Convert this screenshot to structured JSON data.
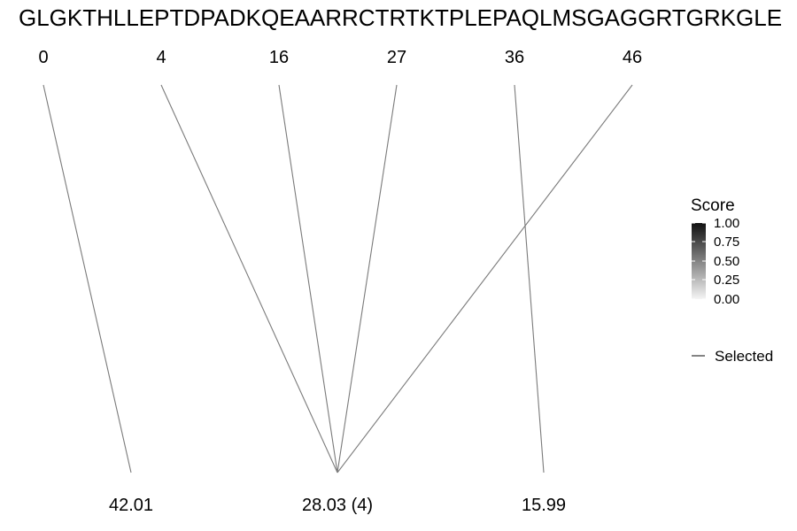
{
  "sequence": "GLGKTHLLEPTDPADKQEAARRCTRTKTPLEPAQLMSGAGGRTGRKGLE",
  "positions": [
    "0",
    "4",
    "16",
    "27",
    "36",
    "46"
  ],
  "fragments": [
    "42.01",
    "28.03 (4)",
    "15.99"
  ],
  "links": [
    {
      "from": "0",
      "to": "42.01"
    },
    {
      "from": "4",
      "to": "28.03 (4)"
    },
    {
      "from": "16",
      "to": "28.03 (4)"
    },
    {
      "from": "27",
      "to": "28.03 (4)"
    },
    {
      "from": "46",
      "to": "28.03 (4)"
    },
    {
      "from": "36",
      "to": "15.99"
    }
  ],
  "legend": {
    "title": "Score",
    "ticks": [
      "1.00",
      "0.75",
      "0.50",
      "0.25",
      "0.00"
    ],
    "selected_label": "Selected",
    "gradient_colors": [
      "#111111",
      "#f5f5f5"
    ]
  }
}
